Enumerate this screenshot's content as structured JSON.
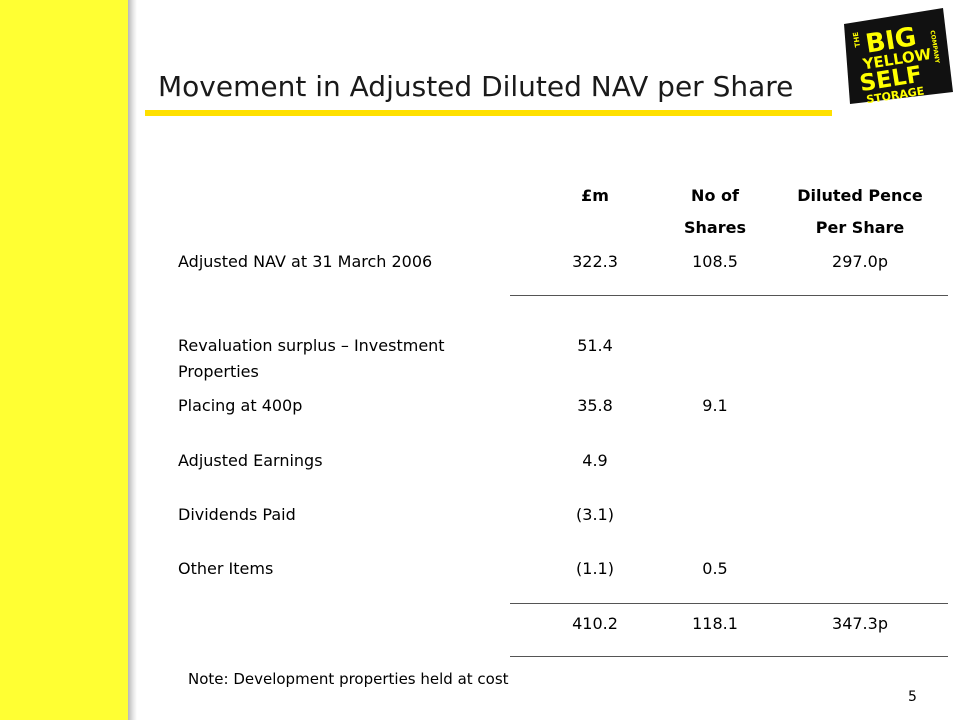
{
  "slide": {
    "title": "Movement in Adjusted Diluted NAV per Share",
    "page_number": "5",
    "note": "Note: Development properties held at cost"
  },
  "logo": {
    "text_the": "THE",
    "text_big": "BIG",
    "text_yellow": "YELLOW",
    "text_self": "SELF",
    "text_storage": "STORAGE",
    "text_company": "COMPANY",
    "colors": {
      "background": "#111111",
      "letters": "#ffff00"
    }
  },
  "table": {
    "headers": {
      "col1": "£m",
      "col2_line1": "No of",
      "col2_line2": "Shares",
      "col3_line1": "Diluted Pence",
      "col3_line2": "Per Share"
    },
    "opening": {
      "label": "Adjusted NAV at 31 March 2006",
      "gbp_m": "322.3",
      "shares": "108.5",
      "pence": "297.0p"
    },
    "rows": [
      {
        "label_line1": "Revaluation surplus – Investment",
        "label_line2": "Properties",
        "gbp_m": "51.4",
        "shares": "",
        "pence": ""
      },
      {
        "label": "Placing at 400p",
        "gbp_m": "35.8",
        "shares": "9.1",
        "pence": ""
      },
      {
        "label": "Adjusted Earnings",
        "gbp_m": "4.9",
        "shares": "",
        "pence": ""
      },
      {
        "label": "Dividends Paid",
        "gbp_m": "(3.1)",
        "shares": "",
        "pence": ""
      },
      {
        "label": "Other Items",
        "gbp_m": "(1.1)",
        "shares": "0.5",
        "pence": ""
      }
    ],
    "total": {
      "gbp_m": "410.2",
      "shares": "118.1",
      "pence": "347.3p"
    }
  },
  "colors": {
    "accent_bar": "#ffff33",
    "title_underline": "#ffe000"
  }
}
